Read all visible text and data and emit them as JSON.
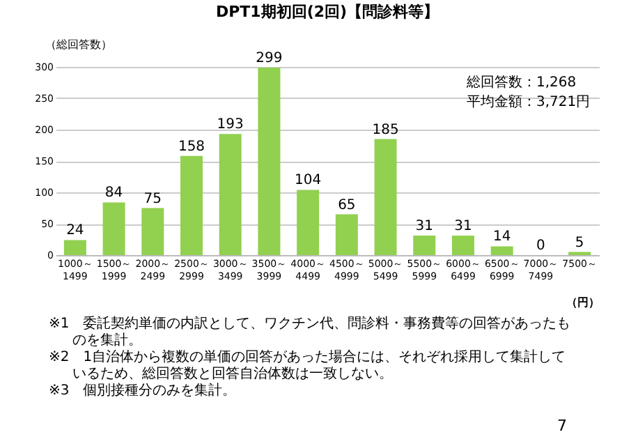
{
  "chart_data": {
    "type": "bar",
    "title": "DPT1期初回(2回)【問診料等】",
    "categories": [
      "1000～\n1499",
      "1500～\n1999",
      "2000～\n2499",
      "2500～\n2999",
      "3000～\n3499",
      "3500～\n3999",
      "4000～\n4499",
      "4500～\n4999",
      "5000～\n5499",
      "5500～\n5999",
      "6000～\n6499",
      "6500～\n6999",
      "7000～\n7499",
      "7500～"
    ],
    "values": [
      24,
      84,
      75,
      158,
      193,
      299,
      104,
      65,
      185,
      31,
      31,
      14,
      0,
      5
    ],
    "color": "#92d050",
    "xlabel": "（円）",
    "ylabel": "（総回答数）",
    "ylim": [
      0,
      300
    ],
    "yticks": [
      0,
      50,
      100,
      150,
      200,
      250,
      300
    ],
    "grid": "y",
    "data_labels": true,
    "annotations": [
      "総回答数：1,268",
      "平均金額：3,721円",
      "※1　委託契約単価の内訳として、ワクチン代、問診料・事務費等の回答があったものを集計。",
      "※2　1自治体から複数の単価の回答があった場合には、それぞれ採用して集計しているため、総回答数と回答自治体数は一致しない。",
      "※3　個別接種分のみを集計。",
      "7"
    ]
  }
}
